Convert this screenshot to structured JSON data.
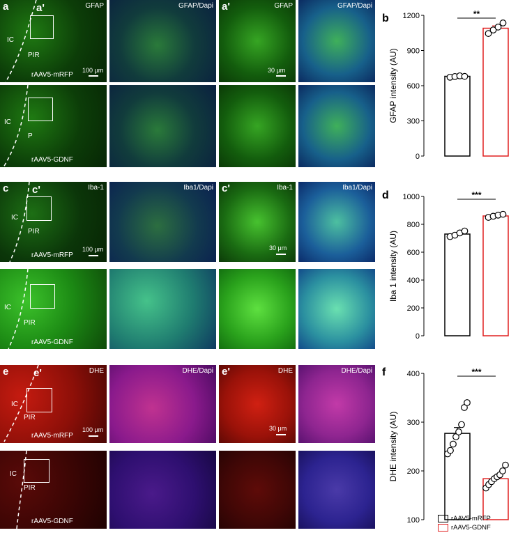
{
  "rows": [
    {
      "rows_label": "GFAP",
      "top": {
        "letter": "a",
        "zoom_letter": "a'",
        "inset_letter": "a'",
        "wide_label": "GFAP",
        "merge_label": "GFAP/Dapi",
        "zoom_label": "GFAP",
        "zoom_merge_label": "GFAP/Dapi",
        "region_ic": "IC",
        "region_pir": "PIR",
        "condition": "rAAV5-mRFP",
        "scale_wide": "100 μm",
        "scale_zoom": "30 μm"
      },
      "bottom": {
        "region_ic": "IC",
        "region_pir": "P",
        "condition": "rAAV5-GDNF"
      }
    },
    {
      "rows_label": "Iba-1",
      "top": {
        "letter": "c",
        "zoom_letter": "c'",
        "inset_letter": "c'",
        "wide_label": "Iba-1",
        "merge_label": "Iba1/Dapi",
        "zoom_label": "Iba-1",
        "zoom_merge_label": "Iba1/Dapi",
        "region_ic": "IC",
        "region_pir": "PIR",
        "condition": "rAAV5-mRFP",
        "scale_wide": "100 μm",
        "scale_zoom": "30 μm"
      },
      "bottom": {
        "region_ic": "IC",
        "region_pir": "PIR",
        "condition": "rAAV5-GDNF"
      }
    },
    {
      "rows_label": "DHE",
      "top": {
        "letter": "e",
        "zoom_letter": "e'",
        "inset_letter": "e'",
        "wide_label": "DHE",
        "merge_label": "DHE/Dapi",
        "zoom_label": "DHE",
        "zoom_merge_label": "DHE/Dapi",
        "region_ic": "IC",
        "region_pir": "PIR",
        "condition": "rAAV5-mRFP",
        "scale_wide": "100 μm",
        "scale_zoom": "30 μm"
      },
      "bottom": {
        "region_ic": "IC",
        "region_pir": "PIR",
        "condition": "rAAV5-GDNF"
      }
    }
  ],
  "colors": {
    "mRFP": "#000000",
    "GDNF": "#e02020"
  },
  "legend": {
    "mRFP": "rAAV5-mRFP",
    "GDNF": "rAAV5-GDNF"
  },
  "chart_data": [
    {
      "panel": "b",
      "type": "bar",
      "ylabel": "GFAP intensity (AU)",
      "ylim": [
        0,
        1200
      ],
      "yticks": [
        0,
        300,
        600,
        900,
        1200
      ],
      "categories": [
        "rAAV5-mRFP",
        "rAAV5-GDNF"
      ],
      "values": [
        680,
        1090
      ],
      "errors": [
        6,
        20
      ],
      "points": [
        [
          672,
          678,
          684,
          679
        ],
        [
          1045,
          1075,
          1100,
          1135
        ]
      ],
      "significance": "**"
    },
    {
      "panel": "d",
      "type": "bar",
      "ylabel": "Iba 1 intensity (AU)",
      "ylim": [
        0,
        1000
      ],
      "yticks": [
        0,
        200,
        400,
        600,
        800,
        1000
      ],
      "categories": [
        "rAAV5-mRFP",
        "rAAV5-GDNF"
      ],
      "values": [
        730,
        860
      ],
      "errors": [
        12,
        8
      ],
      "points": [
        [
          712,
          722,
          738,
          752
        ],
        [
          850,
          858,
          866,
          872
        ]
      ],
      "significance": "***"
    },
    {
      "panel": "f",
      "type": "bar",
      "ylabel": "DHE intensity (AU)",
      "ylim": [
        100,
        400
      ],
      "yticks": [
        100,
        200,
        300,
        400
      ],
      "categories": [
        "rAAV5-mRFP",
        "rAAV5-GDNF"
      ],
      "values": [
        277,
        184
      ],
      "errors": [
        12,
        5
      ],
      "points": [
        [
          235,
          242,
          255,
          270,
          280,
          295,
          330,
          340
        ],
        [
          165,
          172,
          178,
          184,
          188,
          192,
          200,
          212
        ]
      ],
      "significance": "***"
    }
  ]
}
